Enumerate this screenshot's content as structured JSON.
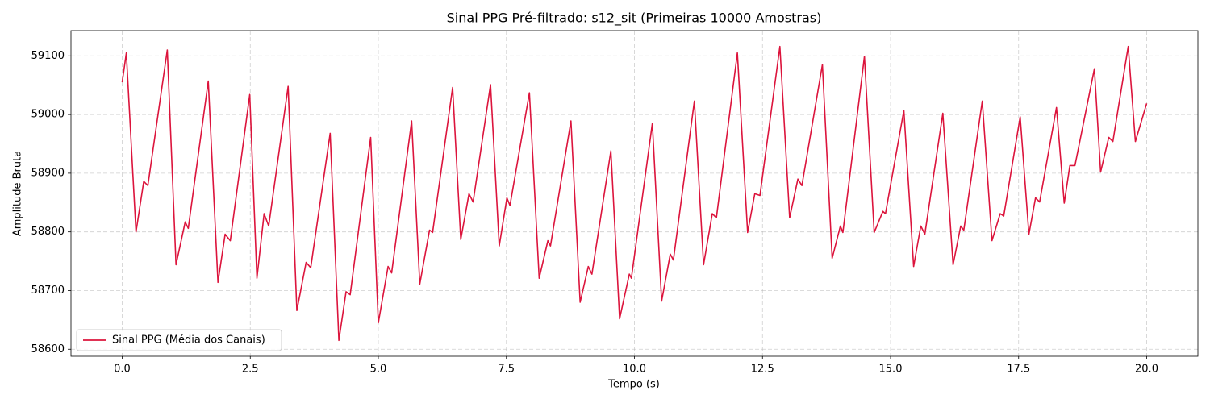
{
  "chart_data": {
    "type": "line",
    "title": "Sinal PPG Pré-filtrado: s12_sit (Primeiras 10000 Amostras)",
    "x_label": "Tempo (s)",
    "y_label": "Amplitude Bruta",
    "x": [
      0,
      0.08,
      0.27,
      0.42,
      0.5,
      0.88,
      1.05,
      1.23,
      1.29,
      1.68,
      1.87,
      2.01,
      2.11,
      2.49,
      2.63,
      2.77,
      2.86,
      3.24,
      3.41,
      3.59,
      3.68,
      4.06,
      4.23,
      4.37,
      4.45,
      4.85,
      5.0,
      5.19,
      5.26,
      5.65,
      5.81,
      6.0,
      6.06,
      6.45,
      6.61,
      6.77,
      6.85,
      7.19,
      7.36,
      7.51,
      7.57,
      7.95,
      8.14,
      8.31,
      8.36,
      8.76,
      8.94,
      9.1,
      9.17,
      9.54,
      9.71,
      9.9,
      9.94,
      10.35,
      10.53,
      10.7,
      10.76,
      11.17,
      11.35,
      11.52,
      11.6,
      12.01,
      12.21,
      12.35,
      12.45,
      12.84,
      13.03,
      13.19,
      13.27,
      13.67,
      13.86,
      14.02,
      14.07,
      14.49,
      14.68,
      14.85,
      14.9,
      15.26,
      15.45,
      15.59,
      15.67,
      16.02,
      16.22,
      16.37,
      16.43,
      16.79,
      16.98,
      17.14,
      17.21,
      17.53,
      17.7,
      17.83,
      17.91,
      18.24,
      18.39,
      18.5,
      18.6,
      18.98,
      19.1,
      19.26,
      19.34,
      19.64,
      19.78,
      20.0
    ],
    "series": [
      {
        "name": "Sinal PPG (Média dos Canais)",
        "color": "#dc143c",
        "values": [
          59055,
          59105,
          58800,
          58886,
          58879,
          59110,
          58744,
          58817,
          58806,
          59057,
          58714,
          58796,
          58785,
          59034,
          58721,
          58831,
          58810,
          59048,
          58666,
          58748,
          58739,
          58968,
          58615,
          58698,
          58693,
          58961,
          58645,
          58741,
          58730,
          58989,
          58711,
          58803,
          58799,
          59046,
          58787,
          58865,
          58851,
          59051,
          58776,
          58858,
          58845,
          59037,
          58721,
          58785,
          58776,
          58989,
          58680,
          58741,
          58728,
          58938,
          58652,
          58728,
          58721,
          58985,
          58682,
          58762,
          58752,
          59023,
          58744,
          58831,
          58824,
          59105,
          58799,
          58865,
          58862,
          59116,
          58824,
          58890,
          58879,
          59085,
          58755,
          58810,
          58799,
          59099,
          58799,
          58835,
          58831,
          59007,
          58741,
          58810,
          58796,
          59002,
          58744,
          58810,
          58803,
          59023,
          58785,
          58831,
          58827,
          58996,
          58796,
          58858,
          58851,
          59012,
          58849,
          58913,
          58913,
          59078,
          58902,
          58961,
          58954,
          59116,
          58954,
          59019
        ]
      }
    ],
    "xlim": [
      -1,
      21
    ],
    "ylim": [
      58588,
      59143
    ],
    "xticks": [
      {
        "value": 0,
        "label": "0.0"
      },
      2.5,
      {
        "value": 5,
        "label": "5.0"
      },
      7.5,
      {
        "value": 10,
        "label": "10.0"
      },
      12.5,
      {
        "value": 15,
        "label": "15.0"
      },
      17.5,
      {
        "value": 20,
        "label": "20.0"
      }
    ],
    "yticks": [
      58600,
      58700,
      58800,
      58900,
      59000,
      59100
    ],
    "grid": true,
    "legend": "lower left"
  }
}
